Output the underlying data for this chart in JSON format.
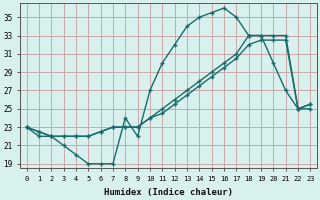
{
  "xlabel": "Humidex (Indice chaleur)",
  "bg_color": "#d8f0ee",
  "grid_color": "#c8a8a8",
  "line_color": "#1a6b6b",
  "xlim": [
    -0.5,
    23.5
  ],
  "ylim": [
    18.5,
    36.5
  ],
  "xticks": [
    0,
    1,
    2,
    3,
    4,
    5,
    6,
    7,
    8,
    9,
    10,
    11,
    12,
    13,
    14,
    15,
    16,
    17,
    18,
    19,
    20,
    21,
    22,
    23
  ],
  "yticks": [
    19,
    21,
    23,
    25,
    27,
    29,
    31,
    33,
    35
  ],
  "line1_x": [
    0,
    1,
    2,
    3,
    4,
    5,
    6,
    7,
    8,
    9,
    10,
    11,
    12,
    13,
    14,
    15,
    16,
    17,
    18,
    19,
    20,
    21,
    22,
    23
  ],
  "line1_y": [
    23,
    22,
    22,
    21,
    20,
    19,
    19,
    19,
    24,
    22,
    27,
    30,
    32,
    34,
    35,
    35.5,
    36,
    35,
    33,
    33,
    30,
    27,
    25,
    25
  ],
  "line2_x": [
    0,
    1,
    2,
    3,
    4,
    5,
    6,
    7,
    8,
    9,
    10,
    11,
    12,
    13,
    14,
    15,
    16,
    17,
    18,
    19,
    20,
    21,
    22,
    23
  ],
  "line2_y": [
    23,
    22.5,
    22,
    22,
    22,
    22,
    22.5,
    23,
    23,
    23,
    24,
    25,
    26,
    27,
    28,
    29,
    30,
    31,
    33,
    33,
    33,
    33,
    25,
    25.5
  ],
  "line3_x": [
    0,
    1,
    2,
    3,
    4,
    5,
    6,
    7,
    8,
    9,
    10,
    11,
    12,
    13,
    14,
    15,
    16,
    17,
    18,
    19,
    20,
    21,
    22,
    23
  ],
  "line3_y": [
    23,
    22.5,
    22,
    22,
    22,
    22,
    22.5,
    23,
    23,
    23,
    24,
    24.5,
    25.5,
    26.5,
    27.5,
    28.5,
    29.5,
    30.5,
    32,
    32.5,
    32.5,
    32.5,
    25,
    25.5
  ]
}
